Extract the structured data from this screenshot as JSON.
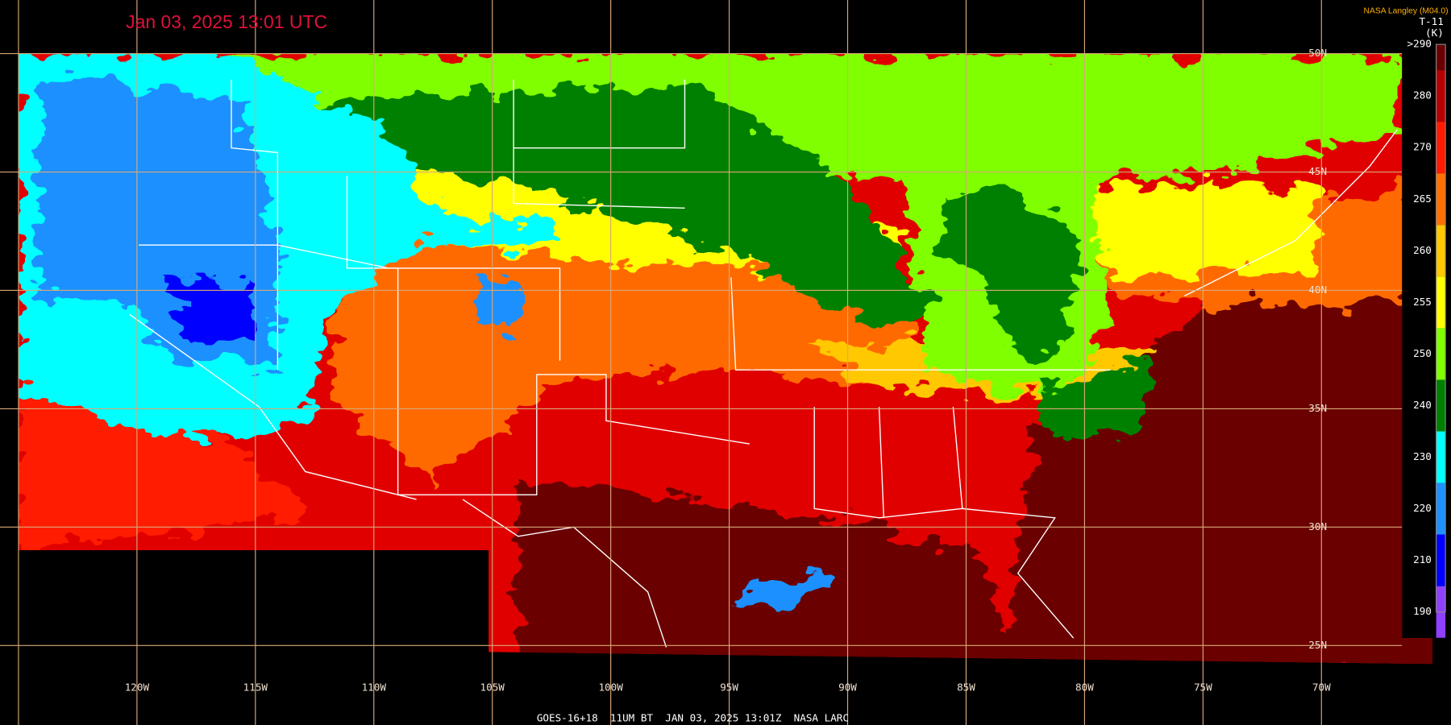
{
  "header": {
    "title": "Jan 03, 2025 13:01 UTC",
    "credit": "NASA Langley (M04.0)",
    "product": "T-11"
  },
  "colorbar": {
    "unit": "(K)",
    "stops": [
      {
        "label": ">290",
        "color": "#6a0000"
      },
      {
        "label": "280",
        "color": "#b80000"
      },
      {
        "label": "270",
        "color": "#ff1a00"
      },
      {
        "label": "265",
        "color": "#ff7000"
      },
      {
        "label": "260",
        "color": "#ffc800"
      },
      {
        "label": "255",
        "color": "#ffff00"
      },
      {
        "label": "250",
        "color": "#80ff00"
      },
      {
        "label": "240",
        "color": "#008000"
      },
      {
        "label": "230",
        "color": "#00ffff"
      },
      {
        "label": "220",
        "color": "#1e90ff"
      },
      {
        "label": "210",
        "color": "#0000ff"
      },
      {
        "label": "190",
        "color": "#9040ff"
      }
    ]
  },
  "grid": {
    "longitudes": [
      "120W",
      "115W",
      "110W",
      "105W",
      "100W",
      "95W",
      "90W",
      "85W",
      "80W",
      "75W",
      "70W"
    ],
    "latitudes": [
      "50N",
      "45N",
      "40N",
      "35N",
      "30N",
      "25N"
    ]
  },
  "footer": "GOES-16+18  11UM BT  JAN 03, 2025 13:01Z  NASA LARC"
}
